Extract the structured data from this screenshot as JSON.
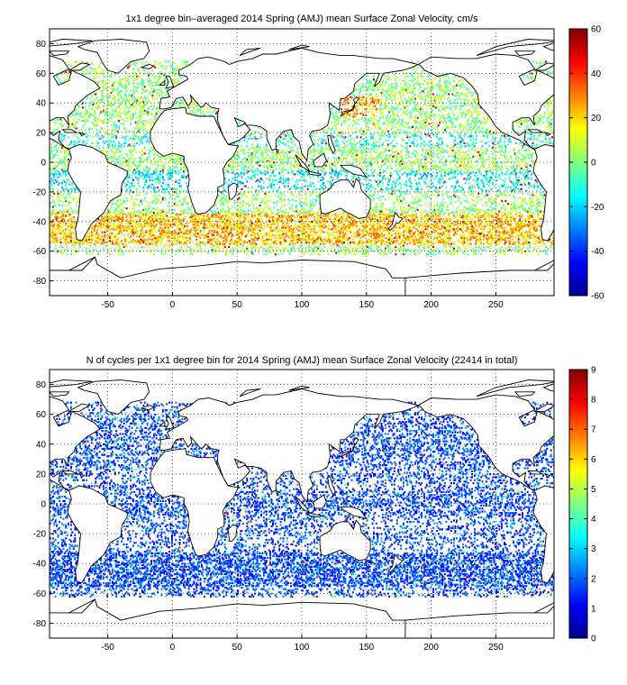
{
  "panel1": {
    "title": "1x1 degree bin–averaged 2014 Spring (AMJ) mean Surface Zonal Velocity, cm/s",
    "x_ticks": [
      "-50",
      "0",
      "50",
      "100",
      "150",
      "200",
      "250"
    ],
    "y_ticks": [
      "80",
      "60",
      "40",
      "20",
      "0",
      "-20",
      "-40",
      "-60",
      "-80"
    ],
    "colorbar_ticks": [
      "60",
      "40",
      "20",
      "0",
      "-20",
      "-40",
      "-60"
    ]
  },
  "panel2": {
    "title": "N of cycles per 1x1 degree bin for 2014 Spring (AMJ) mean Surface Zonal Velocity (22414 in total)",
    "x_ticks": [
      "-50",
      "0",
      "50",
      "100",
      "150",
      "200",
      "250"
    ],
    "y_ticks": [
      "80",
      "60",
      "40",
      "20",
      "0",
      "-20",
      "-40",
      "-60",
      "-80"
    ],
    "colorbar_ticks": [
      "9",
      "8",
      "7",
      "6",
      "5",
      "4",
      "3",
      "2",
      "1",
      "0"
    ]
  },
  "map_extent": {
    "lon": [
      -95,
      295
    ],
    "lat": [
      -90,
      90
    ]
  },
  "colormap": "jet",
  "colors": {
    "coastline": "#000000",
    "land": "#ffffff",
    "background": "#ffffff"
  }
}
